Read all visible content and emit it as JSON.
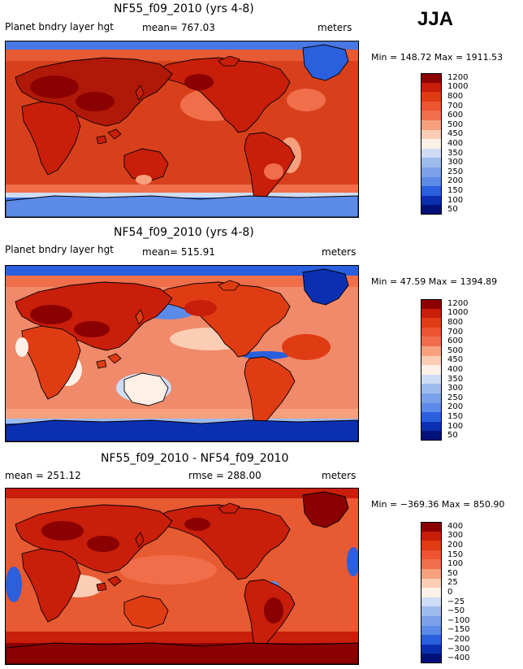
{
  "season": "JJA",
  "units": "meters",
  "colors": {
    "darkred": "#8b0000",
    "red": "#c81e0a",
    "orange_red": "#e03c14",
    "salmon": "#f06e4a",
    "light_salmon": "#f7a07e",
    "peach": "#fbcdb4",
    "cream": "#fdf0e6",
    "light_blue": "#cfdcf5",
    "sky": "#9ebbee",
    "blue": "#5b8ae8",
    "royal": "#2a5fde",
    "navy": "#0a2fb0",
    "deep_navy": "#00127a"
  },
  "chart_data": [
    {
      "type": "heatmap",
      "title": "NF55_f09_2010 (yrs 4-8)",
      "variable": "Planet bndry layer hgt",
      "mean_text": "mean= 767.03",
      "units": "meters",
      "minmax_text": "Min = 148.72 Max = 1911.53",
      "min": 148.72,
      "max": 1911.53,
      "colorbar_levels": [
        "1200",
        "1000",
        "800",
        "700",
        "600",
        "500",
        "450",
        "400",
        "350",
        "300",
        "250",
        "200",
        "150",
        "100",
        "50"
      ],
      "colorbar_colors": [
        "#8b0000",
        "#c81e0a",
        "#e03c14",
        "#ec5530",
        "#f06e4a",
        "#f7a07e",
        "#fbcdb4",
        "#fdf0e6",
        "#cfdcf5",
        "#9ebbee",
        "#7aa1ea",
        "#5b8ae8",
        "#2a5fde",
        "#0a2fb0",
        "#00127a"
      ],
      "ocean_color": "#d8401c",
      "polar_color": "#3a6ee0"
    },
    {
      "type": "heatmap",
      "title": "NF54_f09_2010 (yrs 4-8)",
      "variable": "Planet bndry layer hgt",
      "mean_text": "mean= 515.91",
      "units": "meters",
      "minmax_text": "Min =  47.59 Max = 1394.89",
      "min": 47.59,
      "max": 1394.89,
      "colorbar_levels": [
        "1200",
        "1000",
        "800",
        "700",
        "600",
        "500",
        "450",
        "400",
        "350",
        "300",
        "250",
        "200",
        "150",
        "100",
        "50"
      ],
      "colorbar_colors": [
        "#8b0000",
        "#c81e0a",
        "#e03c14",
        "#ec5530",
        "#f06e4a",
        "#f7a07e",
        "#fbcdb4",
        "#fdf0e6",
        "#cfdcf5",
        "#9ebbee",
        "#7aa1ea",
        "#5b8ae8",
        "#2a5fde",
        "#0a2fb0",
        "#00127a"
      ],
      "ocean_color": "#f08a6a",
      "polar_color": "#1f4fd6"
    },
    {
      "type": "heatmap",
      "title": "NF55_f09_2010 - NF54_f09_2010",
      "variable": "",
      "mean_text": "mean = 251.12",
      "rmse_text": "rmse = 288.00",
      "units": "meters",
      "minmax_text": "Min = −369.36 Max = 850.90",
      "min": -369.36,
      "max": 850.9,
      "colorbar_levels": [
        "400",
        "300",
        "200",
        "150",
        "100",
        "50",
        "25",
        "0",
        "−25",
        "−50",
        "−100",
        "−150",
        "−200",
        "−300",
        "−400"
      ],
      "colorbar_colors": [
        "#8b0000",
        "#c81e0a",
        "#e03c14",
        "#ec5530",
        "#f06e4a",
        "#f7a07e",
        "#fbcdb4",
        "#fdf0e6",
        "#cfdcf5",
        "#9ebbee",
        "#7aa1ea",
        "#5b8ae8",
        "#2a5fde",
        "#0a2fb0",
        "#00127a"
      ],
      "ocean_color": "#e85a32",
      "polar_color": "#b01808"
    }
  ]
}
